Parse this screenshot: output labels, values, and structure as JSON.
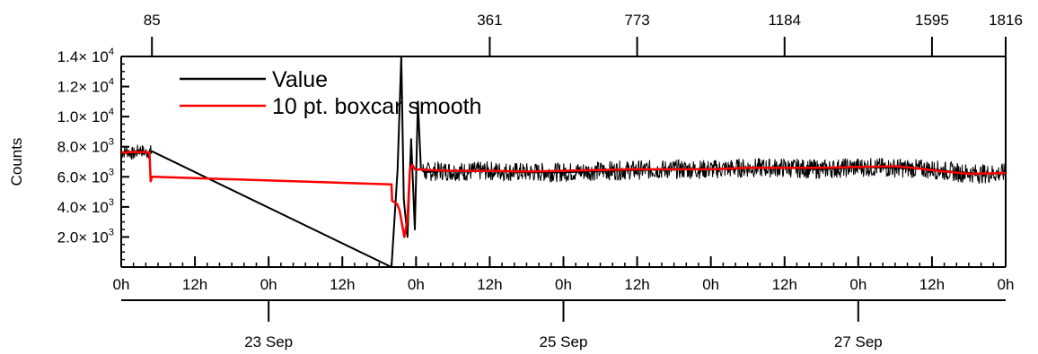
{
  "chart_data": {
    "type": "line",
    "ylabel": "Counts",
    "ylim": [
      0,
      14000
    ],
    "xlim_hours": [
      0,
      144
    ],
    "y_ticks": [
      {
        "value": 2000,
        "mant": "2.0",
        "exp": "3"
      },
      {
        "value": 4000,
        "mant": "4.0",
        "exp": "3"
      },
      {
        "value": 6000,
        "mant": "6.0",
        "exp": "3"
      },
      {
        "value": 8000,
        "mant": "8.0",
        "exp": "3"
      },
      {
        "value": 10000,
        "mant": "1.0",
        "exp": "4"
      },
      {
        "value": 12000,
        "mant": "1.2",
        "exp": "4"
      },
      {
        "value": 14000,
        "mant": "1.4",
        "exp": "4"
      }
    ],
    "times_label": "× 10",
    "x_ticks": [
      {
        "hour": 0,
        "label": "0h"
      },
      {
        "hour": 12,
        "label": "12h"
      },
      {
        "hour": 24,
        "label": "0h"
      },
      {
        "hour": 36,
        "label": "12h"
      },
      {
        "hour": 48,
        "label": "0h"
      },
      {
        "hour": 60,
        "label": "12h"
      },
      {
        "hour": 72,
        "label": "0h"
      },
      {
        "hour": 84,
        "label": "12h"
      },
      {
        "hour": 96,
        "label": "0h"
      },
      {
        "hour": 108,
        "label": "12h"
      },
      {
        "hour": 120,
        "label": "0h"
      },
      {
        "hour": 132,
        "label": "12h"
      },
      {
        "hour": 144,
        "label": "0h"
      }
    ],
    "date_ticks": [
      {
        "hour": 24,
        "label": "23 Sep"
      },
      {
        "hour": 72,
        "label": "25 Sep"
      },
      {
        "hour": 120,
        "label": "27 Sep"
      }
    ],
    "top_ticks": [
      {
        "hour": 5,
        "label": "85"
      },
      {
        "hour": 60,
        "label": "361"
      },
      {
        "hour": 84,
        "label": "773"
      },
      {
        "hour": 108,
        "label": "1184"
      },
      {
        "hour": 132,
        "label": "1595"
      },
      {
        "hour": 144,
        "label": "1816"
      }
    ],
    "series": [
      {
        "name": "Value",
        "color": "#000000",
        "points": [
          [
            0,
            7600
          ],
          [
            1,
            7700
          ],
          [
            2,
            7500
          ],
          [
            3,
            7800
          ],
          [
            4,
            7600
          ],
          [
            5,
            7700
          ],
          [
            44,
            0
          ],
          [
            45,
            6500
          ],
          [
            45.6,
            14000
          ],
          [
            46,
            4500
          ],
          [
            46.6,
            2000
          ],
          [
            47.2,
            8500
          ],
          [
            47.8,
            2500
          ],
          [
            48.3,
            11000
          ],
          [
            48.8,
            6500
          ],
          [
            49.5,
            6300
          ],
          [
            52,
            6400
          ],
          [
            56,
            6350
          ],
          [
            60,
            6400
          ],
          [
            66,
            6300
          ],
          [
            72,
            6300
          ],
          [
            78,
            6400
          ],
          [
            84,
            6450
          ],
          [
            90,
            6500
          ],
          [
            96,
            6500
          ],
          [
            102,
            6600
          ],
          [
            108,
            6600
          ],
          [
            114,
            6500
          ],
          [
            120,
            6650
          ],
          [
            126,
            6600
          ],
          [
            132,
            6500
          ],
          [
            136,
            6300
          ],
          [
            140,
            6200
          ],
          [
            144,
            6250
          ]
        ]
      },
      {
        "name": "10 pt. boxcar smooth",
        "color": "#ff0000",
        "points": [
          [
            0,
            7600
          ],
          [
            2,
            7650
          ],
          [
            4,
            7650
          ],
          [
            4.6,
            7600
          ],
          [
            4.8,
            5700
          ],
          [
            5,
            6000
          ],
          [
            5.3,
            6000
          ],
          [
            44,
            5500
          ],
          [
            44.1,
            4400
          ],
          [
            44.9,
            4200
          ],
          [
            45.3,
            3800
          ],
          [
            46.1,
            2000
          ],
          [
            46.6,
            3200
          ],
          [
            47,
            6500
          ],
          [
            47.4,
            6800
          ],
          [
            47.8,
            6500
          ],
          [
            50,
            6450
          ],
          [
            54,
            6400
          ],
          [
            60,
            6400
          ],
          [
            66,
            6350
          ],
          [
            72,
            6400
          ],
          [
            78,
            6450
          ],
          [
            84,
            6500
          ],
          [
            90,
            6500
          ],
          [
            96,
            6500
          ],
          [
            102,
            6600
          ],
          [
            108,
            6600
          ],
          [
            114,
            6600
          ],
          [
            120,
            6650
          ],
          [
            126,
            6700
          ],
          [
            130,
            6550
          ],
          [
            134,
            6350
          ],
          [
            138,
            6200
          ],
          [
            144,
            6250
          ]
        ]
      }
    ],
    "legend": [
      {
        "label": "Value",
        "color": "#000000"
      },
      {
        "label": "10 pt. boxcar smooth",
        "color": "#ff0000"
      }
    ]
  }
}
